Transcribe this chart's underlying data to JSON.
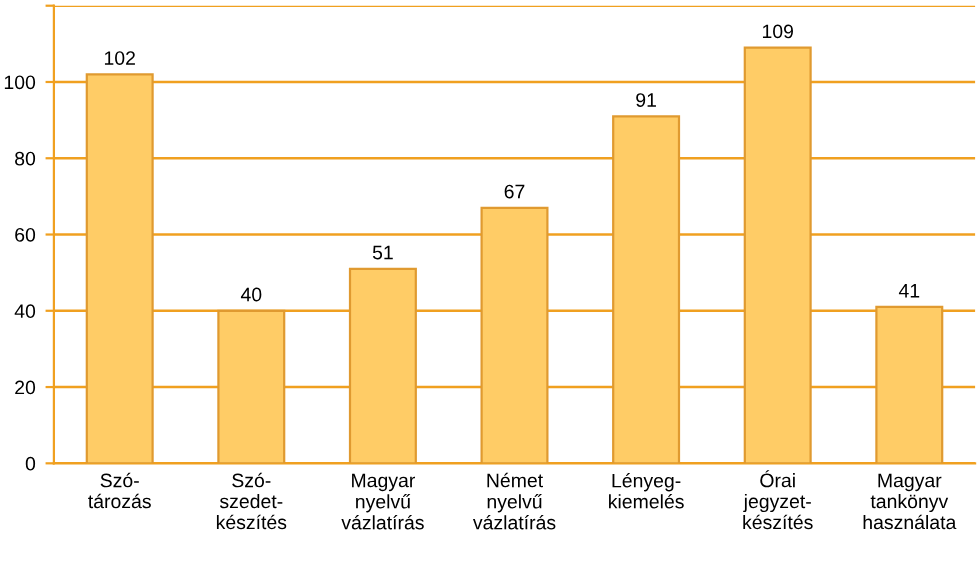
{
  "chart_data": {
    "type": "bar",
    "categories": [
      "Szó-\ntározás",
      "Szó-\nszedet-\nkészítés",
      "Magyar\nnyelvű\nvázlatírás",
      "Német\nnyelvű\nvázlatírás",
      "Lényeg-\nkiemelés",
      "Órai\njegyzet-\nkészítés",
      "Magyar\ntankönyv\nhasználata"
    ],
    "values": [
      102,
      40,
      51,
      67,
      91,
      109,
      41
    ],
    "color": "#ffcc66",
    "ylim": [
      0,
      120
    ],
    "yticks": [
      0,
      20,
      40,
      60,
      80,
      100,
      {
        "value": 120,
        "label": null
      }
    ],
    "grid": "y",
    "data_labels": true
  }
}
